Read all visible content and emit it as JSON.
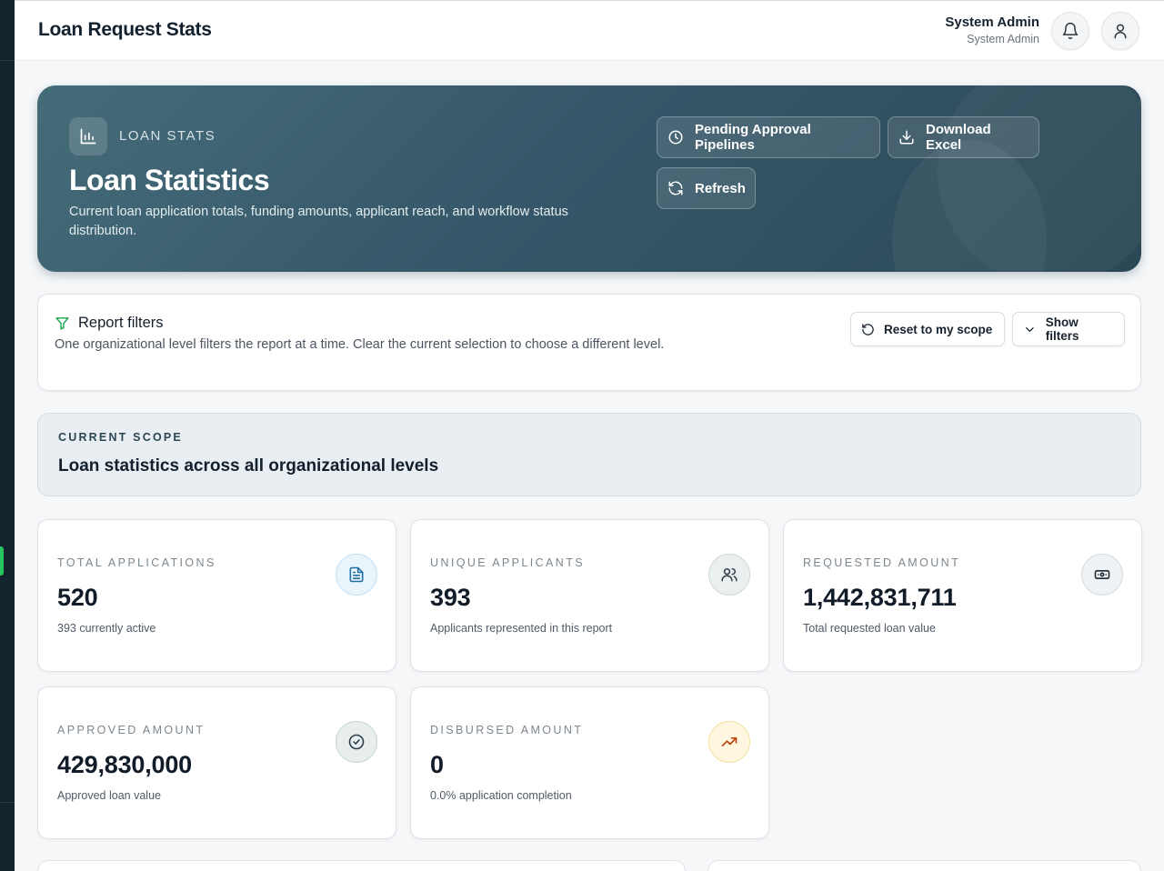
{
  "header": {
    "title": "Loan Request Stats",
    "user_name": "System Admin",
    "user_role": "System Admin"
  },
  "hero": {
    "eyebrow": "LOAN STATS",
    "title": "Loan Statistics",
    "description": "Current loan application totals, funding amounts, applicant reach, and workflow status distribution.",
    "buttons": {
      "pending": "Pending Approval Pipelines",
      "download": "Download Excel",
      "refresh": "Refresh"
    }
  },
  "filters": {
    "title": "Report filters",
    "description": "One organizational level filters the report at a time. Clear the current selection to choose a different level.",
    "reset_label": "Reset to my scope",
    "show_label": "Show filters"
  },
  "scope": {
    "eyebrow": "CURRENT SCOPE",
    "text": "Loan statistics across all organizational levels"
  },
  "stats": [
    {
      "label": "TOTAL APPLICATIONS",
      "value": "520",
      "sub": "393 currently active",
      "icon": "document-icon"
    },
    {
      "label": "UNIQUE APPLICANTS",
      "value": "393",
      "sub": "Applicants represented in this report",
      "icon": "users-icon"
    },
    {
      "label": "REQUESTED AMOUNT",
      "value": "1,442,831,711",
      "sub": "Total requested loan value",
      "icon": "banknote-icon"
    },
    {
      "label": "APPROVED AMOUNT",
      "value": "429,830,000",
      "sub": "Approved loan value",
      "icon": "check-circle-icon"
    },
    {
      "label": "DISBURSED AMOUNT",
      "value": "0",
      "sub": "0.0% application completion",
      "icon": "trending-up-icon"
    }
  ],
  "colors": {
    "hero_bg": "#36586a",
    "accent_green": "#22c55e",
    "filter_icon": "#16a34a",
    "trend_icon": "#c2410c"
  }
}
